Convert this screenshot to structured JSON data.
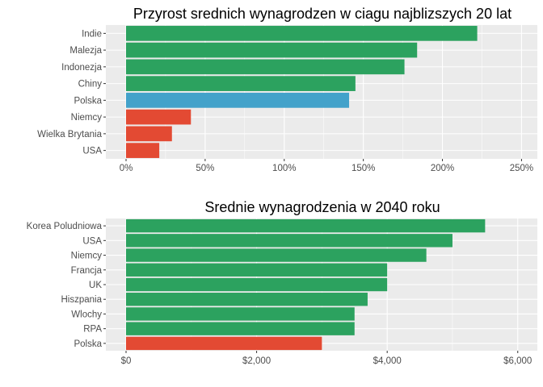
{
  "chart_data": [
    {
      "type": "bar",
      "orientation": "horizontal",
      "title": "Przyrost srednich wynagrodzen w ciagu najblizszych 20 lat",
      "categories": [
        "Indie",
        "Malezja",
        "Indonezja",
        "Chiny",
        "Polska",
        "Niemcy",
        "Wielka Brytania",
        "USA"
      ],
      "values": [
        222,
        184,
        176,
        145,
        141,
        41,
        29,
        21
      ],
      "bar_colors": [
        "#2ca25f",
        "#2ca25f",
        "#2ca25f",
        "#2ca25f",
        "#43a2ca",
        "#e34a33",
        "#e34a33",
        "#e34a33"
      ],
      "x_ticks": [
        0,
        50,
        100,
        150,
        200,
        250
      ],
      "x_tick_labels": [
        "0%",
        "50%",
        "100%",
        "150%",
        "200%",
        "250%"
      ],
      "xlim": [
        0,
        260
      ],
      "xlabel": "",
      "ylabel": "",
      "grid": true,
      "legend": "none"
    },
    {
      "type": "bar",
      "orientation": "horizontal",
      "title": "Srednie wynagrodzenia w 2040 roku",
      "categories": [
        "Korea Poludniowa",
        "USA",
        "Niemcy",
        "Francja",
        "UK",
        "Hiszpania",
        "Wlochy",
        "RPA",
        "Polska"
      ],
      "values": [
        5500,
        5000,
        4600,
        4000,
        4000,
        3700,
        3500,
        3500,
        3000
      ],
      "bar_colors": [
        "#2ca25f",
        "#2ca25f",
        "#2ca25f",
        "#2ca25f",
        "#2ca25f",
        "#2ca25f",
        "#2ca25f",
        "#2ca25f",
        "#e34a33"
      ],
      "x_ticks": [
        0,
        2000,
        4000,
        6000
      ],
      "x_tick_labels": [
        "$0",
        "$2,000",
        "$4,000",
        "$6,000"
      ],
      "xlim": [
        0,
        6300
      ],
      "xlabel": "",
      "ylabel": "",
      "grid": true,
      "legend": "none"
    }
  ],
  "colors": {
    "panel_background": "#ebebeb",
    "grid_line": "#ffffff",
    "tick_text": "#4d4d4d",
    "green": "#2ca25f",
    "blue": "#43a2ca",
    "red": "#e34a33"
  }
}
